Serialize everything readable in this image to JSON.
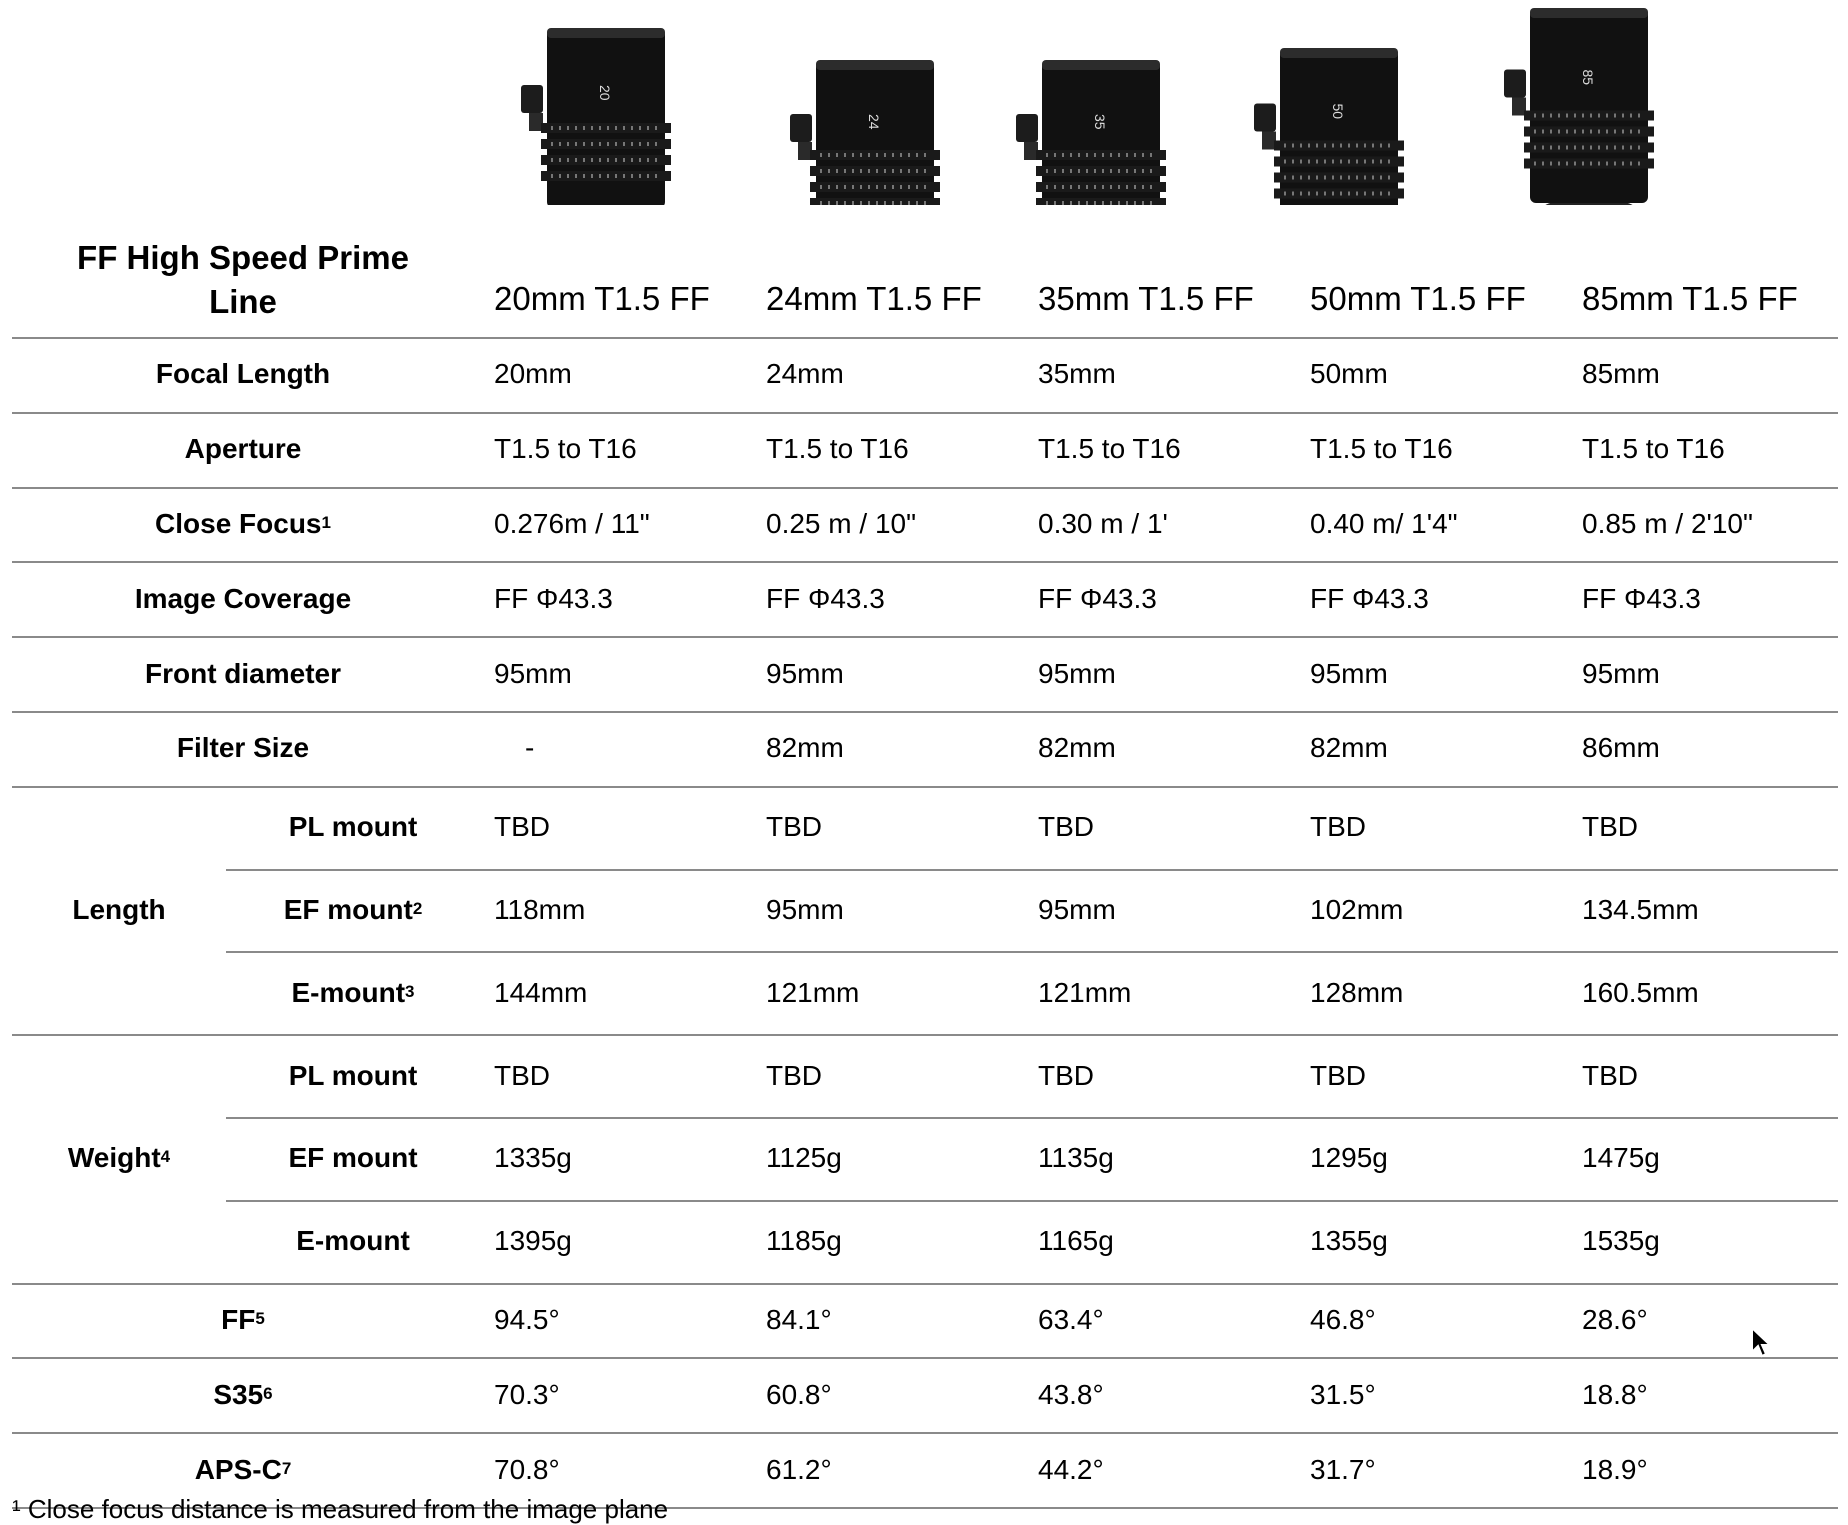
{
  "header": {
    "title_line1": "FF High Speed Prime",
    "title_line2": "Line",
    "columns": [
      "20mm T1.5 FF",
      "24mm T1.5 FF",
      "35mm T1.5 FF",
      "50mm T1.5 FF",
      "85mm T1.5 FF"
    ],
    "lens_markings": [
      "20",
      "24",
      "35",
      "50",
      "85"
    ]
  },
  "rows": [
    {
      "label": "Focal Length",
      "sup": "",
      "values": [
        "20mm",
        "24mm",
        "35mm",
        "50mm",
        "85mm"
      ]
    },
    {
      "label": "Aperture",
      "sup": "",
      "values": [
        "T1.5 to T16",
        "T1.5 to T16",
        "T1.5 to T16",
        "T1.5 to T16",
        "T1.5 to T16"
      ]
    },
    {
      "label": "Close Focus",
      "sup": "1",
      "values": [
        "0.276m / 11\"",
        "0.25 m / 10\"",
        "0.30 m / 1'",
        "0.40 m/ 1'4\"",
        "0.85 m / 2'10\""
      ]
    },
    {
      "label": "Image Coverage",
      "sup": "",
      "values": [
        "FF Φ43.3",
        "FF Φ43.3",
        "FF Φ43.3",
        "FF Φ43.3",
        "FF Φ43.3"
      ]
    },
    {
      "label": "Front diameter",
      "sup": "",
      "values": [
        "95mm",
        "95mm",
        "95mm",
        "95mm",
        "95mm"
      ]
    },
    {
      "label": "Filter Size",
      "sup": "",
      "values": [
        "-",
        "82mm",
        "82mm",
        "82mm",
        "86mm"
      ]
    }
  ],
  "groups": [
    {
      "label": "Length",
      "sup": "",
      "subrows": [
        {
          "label": "PL mount",
          "sup": "",
          "values": [
            "TBD",
            "TBD",
            "TBD",
            "TBD",
            "TBD"
          ]
        },
        {
          "label": "EF mount",
          "sup": "2",
          "values": [
            "118mm",
            "95mm",
            "95mm",
            "102mm",
            "134.5mm"
          ]
        },
        {
          "label": "E-mount",
          "sup": "3",
          "values": [
            "144mm",
            "121mm",
            "121mm",
            "128mm",
            "160.5mm"
          ]
        }
      ]
    },
    {
      "label": "Weight",
      "sup": "4",
      "subrows": [
        {
          "label": "PL mount",
          "sup": "",
          "values": [
            "TBD",
            "TBD",
            "TBD",
            "TBD",
            "TBD"
          ]
        },
        {
          "label": "EF mount",
          "sup": "",
          "values": [
            "1335g",
            "1125g",
            "1135g",
            "1295g",
            "1475g"
          ]
        },
        {
          "label": "E-mount",
          "sup": "",
          "values": [
            "1395g",
            "1185g",
            "1165g",
            "1355g",
            "1535g"
          ]
        }
      ]
    }
  ],
  "angle_rows": [
    {
      "label": "FF",
      "sup": "5",
      "values": [
        "94.5°",
        "84.1°",
        "63.4°",
        "46.8°",
        "28.6°"
      ]
    },
    {
      "label": "S35",
      "sup": "6",
      "values": [
        "70.3°",
        "60.8°",
        "43.8°",
        "31.5°",
        "18.8°"
      ]
    },
    {
      "label": "APS-C",
      "sup": "7",
      "values": [
        "70.8°",
        "61.2°",
        "44.2°",
        "31.7°",
        "18.9°"
      ]
    }
  ],
  "footnote": "¹ Close focus distance is measured from the image plane"
}
